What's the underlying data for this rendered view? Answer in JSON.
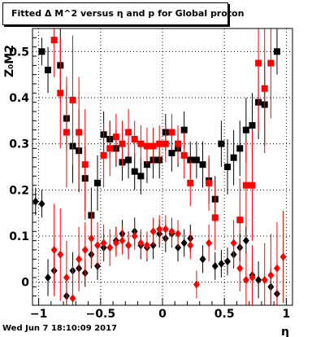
{
  "title": "Fitted Δ M^2 versus η and p for Global proton",
  "footer": "Wed Jun  7 18:10:09 2017",
  "chart_data": {
    "type": "scatter",
    "xlabel": "η",
    "ylabel": "Z₀M2",
    "xlim": [
      -1.05,
      1.05
    ],
    "ylim": [
      -0.05,
      0.55
    ],
    "x_ticks": [
      "−1",
      "−0.5",
      "0",
      "0.5",
      "1"
    ],
    "y_ticks": [
      "0",
      "0.1",
      "0.2",
      "0.3",
      "0.4",
      "0.5"
    ],
    "grid": true,
    "series": [
      {
        "marker": "square",
        "color": "#000000",
        "points": [
          {
            "x": -0.975,
            "y": 0.5,
            "e": 0.03
          },
          {
            "x": -0.925,
            "y": 0.46,
            "e": 0.05
          },
          {
            "x": -0.825,
            "y": 0.47,
            "e": 0.08
          },
          {
            "x": -0.775,
            "y": 0.355,
            "e": 0.07
          },
          {
            "x": -0.725,
            "y": 0.295,
            "e": 0.08
          },
          {
            "x": -0.675,
            "y": 0.285,
            "e": 0.09
          },
          {
            "x": -0.625,
            "y": 0.225,
            "e": 0.07
          },
          {
            "x": -0.575,
            "y": 0.145,
            "e": 0.06
          },
          {
            "x": -0.525,
            "y": 0.215,
            "e": 0.06
          },
          {
            "x": -0.475,
            "y": 0.32,
            "e": 0.05
          },
          {
            "x": -0.425,
            "y": 0.31,
            "e": 0.04
          },
          {
            "x": -0.375,
            "y": 0.29,
            "e": 0.04
          },
          {
            "x": -0.325,
            "y": 0.26,
            "e": 0.04
          },
          {
            "x": -0.275,
            "y": 0.265,
            "e": 0.04
          },
          {
            "x": -0.225,
            "y": 0.24,
            "e": 0.04
          },
          {
            "x": -0.175,
            "y": 0.23,
            "e": 0.04
          },
          {
            "x": -0.125,
            "y": 0.255,
            "e": 0.04
          },
          {
            "x": -0.075,
            "y": 0.265,
            "e": 0.04
          },
          {
            "x": -0.025,
            "y": 0.265,
            "e": 0.04
          },
          {
            "x": 0.025,
            "y": 0.325,
            "e": 0.04
          },
          {
            "x": 0.075,
            "y": 0.28,
            "e": 0.04
          },
          {
            "x": 0.125,
            "y": 0.29,
            "e": 0.04
          },
          {
            "x": 0.175,
            "y": 0.33,
            "e": 0.04
          },
          {
            "x": 0.225,
            "y": 0.265,
            "e": 0.04
          },
          {
            "x": 0.275,
            "y": 0.265,
            "e": 0.04
          },
          {
            "x": 0.325,
            "y": 0.255,
            "e": 0.05
          },
          {
            "x": 0.375,
            "y": 0.22,
            "e": 0.05
          },
          {
            "x": 0.425,
            "y": 0.18,
            "e": 0.05
          },
          {
            "x": 0.475,
            "y": 0.3,
            "e": 0.05
          },
          {
            "x": 0.525,
            "y": 0.25,
            "e": 0.06
          },
          {
            "x": 0.575,
            "y": 0.27,
            "e": 0.06
          },
          {
            "x": 0.625,
            "y": 0.29,
            "e": 0.06
          },
          {
            "x": 0.675,
            "y": 0.33,
            "e": 0.07
          },
          {
            "x": 0.725,
            "y": 0.34,
            "e": 0.07
          },
          {
            "x": 0.775,
            "y": 0.39,
            "e": 0.08
          },
          {
            "x": 0.825,
            "y": 0.385,
            "e": 0.09
          },
          {
            "x": 0.925,
            "y": 0.5,
            "e": 0.05
          }
        ]
      },
      {
        "marker": "square",
        "color": "#ff0000",
        "points": [
          {
            "x": -0.875,
            "y": 0.525,
            "e": 0.08
          },
          {
            "x": -0.825,
            "y": 0.41,
            "e": 0.12
          },
          {
            "x": -0.775,
            "y": 0.325,
            "e": 0.12
          },
          {
            "x": -0.725,
            "y": 0.395,
            "e": 0.14
          },
          {
            "x": -0.675,
            "y": 0.325,
            "e": 0.12
          },
          {
            "x": -0.625,
            "y": 0.255,
            "e": 0.12
          },
          {
            "x": -0.475,
            "y": 0.275,
            "e": 0.07
          },
          {
            "x": -0.425,
            "y": 0.29,
            "e": 0.06
          },
          {
            "x": -0.375,
            "y": 0.315,
            "e": 0.05
          },
          {
            "x": -0.325,
            "y": 0.3,
            "e": 0.05
          },
          {
            "x": -0.275,
            "y": 0.325,
            "e": 0.05
          },
          {
            "x": -0.225,
            "y": 0.31,
            "e": 0.04
          },
          {
            "x": -0.175,
            "y": 0.3,
            "e": 0.04
          },
          {
            "x": -0.125,
            "y": 0.295,
            "e": 0.04
          },
          {
            "x": -0.075,
            "y": 0.295,
            "e": 0.04
          },
          {
            "x": -0.025,
            "y": 0.3,
            "e": 0.04
          },
          {
            "x": 0.025,
            "y": 0.3,
            "e": 0.04
          },
          {
            "x": 0.075,
            "y": 0.325,
            "e": 0.04
          },
          {
            "x": 0.125,
            "y": 0.3,
            "e": 0.04
          },
          {
            "x": 0.175,
            "y": 0.275,
            "e": 0.05
          },
          {
            "x": 0.225,
            "y": 0.215,
            "e": 0.05
          },
          {
            "x": 0.375,
            "y": 0.215,
            "e": 0.06
          },
          {
            "x": 0.425,
            "y": 0.14,
            "e": 0.07
          },
          {
            "x": 0.625,
            "y": 0.135,
            "e": 0.09
          },
          {
            "x": 0.675,
            "y": 0.21,
            "e": 0.1
          },
          {
            "x": 0.725,
            "y": 0.21,
            "e": 0.12
          },
          {
            "x": 0.775,
            "y": 0.475,
            "e": 0.15
          },
          {
            "x": 0.825,
            "y": 0.42,
            "e": 0.14
          },
          {
            "x": 0.875,
            "y": 0.475,
            "e": 0.12
          }
        ]
      },
      {
        "marker": "diamond",
        "color": "#000000",
        "points": [
          {
            "x": -1.025,
            "y": 0.175,
            "e": 0.03
          },
          {
            "x": -0.975,
            "y": 0.17,
            "e": 0.03
          },
          {
            "x": -0.925,
            "y": 0.01,
            "e": 0.04
          },
          {
            "x": -0.875,
            "y": 0.025,
            "e": 0.04
          },
          {
            "x": -0.775,
            "y": -0.03,
            "e": 0.04
          },
          {
            "x": -0.725,
            "y": 0.025,
            "e": 0.04
          },
          {
            "x": -0.675,
            "y": 0.03,
            "e": 0.03
          },
          {
            "x": -0.625,
            "y": 0.02,
            "e": 0.03
          },
          {
            "x": -0.575,
            "y": 0.06,
            "e": 0.03
          },
          {
            "x": -0.525,
            "y": 0.035,
            "e": 0.03
          },
          {
            "x": -0.475,
            "y": 0.075,
            "e": 0.03
          },
          {
            "x": -0.375,
            "y": 0.09,
            "e": 0.03
          },
          {
            "x": -0.325,
            "y": 0.105,
            "e": 0.03
          },
          {
            "x": -0.275,
            "y": 0.08,
            "e": 0.03
          },
          {
            "x": -0.225,
            "y": 0.11,
            "e": 0.03
          },
          {
            "x": -0.175,
            "y": 0.08,
            "e": 0.03
          },
          {
            "x": -0.125,
            "y": 0.075,
            "e": 0.03
          },
          {
            "x": -0.075,
            "y": 0.08,
            "e": 0.03
          },
          {
            "x": -0.025,
            "y": 0.105,
            "e": 0.03
          },
          {
            "x": 0.025,
            "y": 0.095,
            "e": 0.03
          },
          {
            "x": 0.075,
            "y": 0.105,
            "e": 0.03
          },
          {
            "x": 0.125,
            "y": 0.075,
            "e": 0.03
          },
          {
            "x": 0.175,
            "y": 0.085,
            "e": 0.03
          },
          {
            "x": 0.225,
            "y": 0.095,
            "e": 0.03
          },
          {
            "x": 0.325,
            "y": 0.05,
            "e": 0.03
          },
          {
            "x": 0.425,
            "y": 0.035,
            "e": 0.03
          },
          {
            "x": 0.475,
            "y": 0.04,
            "e": 0.03
          },
          {
            "x": 0.525,
            "y": 0.045,
            "e": 0.03
          },
          {
            "x": 0.575,
            "y": 0.06,
            "e": 0.03
          },
          {
            "x": 0.625,
            "y": 0.075,
            "e": 0.03
          },
          {
            "x": 0.675,
            "y": 0.09,
            "e": 0.03
          },
          {
            "x": 0.725,
            "y": 0.015,
            "e": 0.04
          },
          {
            "x": 0.775,
            "y": 0.005,
            "e": 0.04
          },
          {
            "x": 0.875,
            "y": -0.01,
            "e": 0.04
          },
          {
            "x": 0.925,
            "y": -0.025,
            "e": 0.04
          }
        ]
      },
      {
        "marker": "diamond",
        "color": "#ff0000",
        "points": [
          {
            "x": -0.875,
            "y": 0.07,
            "e": 0.1
          },
          {
            "x": -0.825,
            "y": 0.06,
            "e": 0.1
          },
          {
            "x": -0.775,
            "y": 0.01,
            "e": 0.08
          },
          {
            "x": -0.725,
            "y": -0.035,
            "e": 0.07
          },
          {
            "x": -0.675,
            "y": 0.05,
            "e": 0.07
          },
          {
            "x": -0.625,
            "y": 0.07,
            "e": 0.06
          },
          {
            "x": -0.575,
            "y": 0.095,
            "e": 0.06
          },
          {
            "x": -0.525,
            "y": 0.08,
            "e": 0.05
          },
          {
            "x": -0.475,
            "y": 0.085,
            "e": 0.04
          },
          {
            "x": -0.425,
            "y": 0.075,
            "e": 0.04
          },
          {
            "x": -0.375,
            "y": 0.085,
            "e": 0.03
          },
          {
            "x": -0.325,
            "y": 0.09,
            "e": 0.03
          },
          {
            "x": -0.275,
            "y": 0.08,
            "e": 0.03
          },
          {
            "x": -0.225,
            "y": 0.1,
            "e": 0.03
          },
          {
            "x": -0.175,
            "y": 0.085,
            "e": 0.03
          },
          {
            "x": -0.125,
            "y": 0.08,
            "e": 0.03
          },
          {
            "x": -0.075,
            "y": 0.11,
            "e": 0.03
          },
          {
            "x": -0.025,
            "y": 0.115,
            "e": 0.03
          },
          {
            "x": 0.025,
            "y": 0.115,
            "e": 0.03
          },
          {
            "x": 0.075,
            "y": 0.11,
            "e": 0.03
          },
          {
            "x": 0.125,
            "y": 0.105,
            "e": 0.03
          },
          {
            "x": 0.225,
            "y": 0.08,
            "e": 0.03
          },
          {
            "x": 0.275,
            "y": -0.005,
            "e": 0.03
          },
          {
            "x": 0.375,
            "y": 0.085,
            "e": 0.04
          },
          {
            "x": 0.575,
            "y": 0.085,
            "e": 0.05
          },
          {
            "x": 0.625,
            "y": 0.03,
            "e": 0.05
          },
          {
            "x": 0.675,
            "y": 0.005,
            "e": 0.06
          },
          {
            "x": 0.725,
            "y": 0.01,
            "e": 0.07
          },
          {
            "x": 0.825,
            "y": 0.005,
            "e": 0.08
          },
          {
            "x": 0.875,
            "y": 0.015,
            "e": 0.09
          },
          {
            "x": 0.925,
            "y": 0.03,
            "e": 0.1
          },
          {
            "x": 0.975,
            "y": 0.055,
            "e": 0.1
          }
        ]
      }
    ]
  }
}
